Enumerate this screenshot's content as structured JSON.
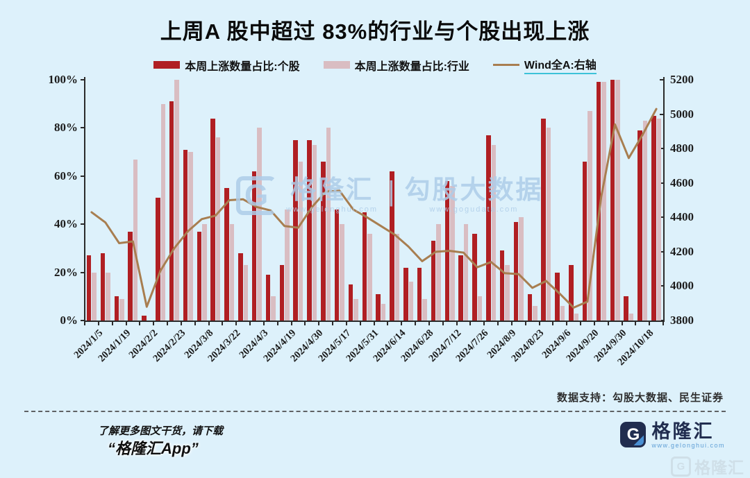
{
  "title": "上周A 股中超过 83%的行业与个股出现上涨",
  "legend": [
    {
      "label": "本周上涨数量占比:个股",
      "color": "#b01f23",
      "type": "bar"
    },
    {
      "label": "本周上涨数量占比:行业",
      "color": "#d9bdc2",
      "type": "bar"
    },
    {
      "label": "Wind全A:右轴",
      "color": "#a87e50",
      "type": "line",
      "underline_color": "#3cc2d8"
    }
  ],
  "watermark": {
    "logo_glyph": "G",
    "brand": "格隆汇",
    "brand_url": "www.gelonghui.com",
    "divider": "|",
    "partner": "勾股大数据",
    "partner_url": "www.gogudata.com"
  },
  "footer": {
    "data_support": "数据支持：勾股大数据、民生证券",
    "promo_line1": "了解更多图文干货，请下载",
    "promo_line2": "“格隆汇App”",
    "logo_glyph": "G",
    "logo_text": "格隆汇",
    "logo_url": "www.gelonghui.com",
    "corner_logo_glyph": "G",
    "corner_logo_text": "格隆汇"
  },
  "chart_data": {
    "type": "bar+line",
    "x_tick_labels": [
      "2024/1/5",
      "2024/1/19",
      "2024/2/2",
      "2024/2/23",
      "2024/3/8",
      "2024/3/22",
      "2024/4/3",
      "2024/4/19",
      "2024/4/30",
      "2024/5/17",
      "2024/5/31",
      "2024/6/14",
      "2024/6/28",
      "2024/7/12",
      "2024/7/26",
      "2024/8/9",
      "2024/8/23",
      "2024/9/6",
      "2024/9/20",
      "2024/9/30",
      "2024/10/18"
    ],
    "label_every_n_pairs": 2,
    "left_axis": {
      "min": 0,
      "max": 100,
      "ticks": [
        "0%",
        "20%",
        "40%",
        "60%",
        "80%",
        "100%"
      ]
    },
    "right_axis": {
      "min": 3800,
      "max": 5200,
      "ticks": [
        "3800",
        "4000",
        "4200",
        "4400",
        "4600",
        "4800",
        "5000",
        "5200"
      ]
    },
    "series": [
      {
        "name": "本周上涨数量占比:个股",
        "type": "bar",
        "axis": "left",
        "color": "#b01f23",
        "values": [
          27,
          28,
          10,
          37,
          2,
          51,
          91,
          71,
          37,
          84,
          55,
          28,
          62,
          19,
          23,
          75,
          75,
          66,
          46,
          15,
          45,
          11,
          62,
          22,
          22,
          33,
          58,
          27,
          36,
          77,
          29,
          41,
          11,
          84,
          20,
          23,
          66,
          99,
          100,
          10,
          79,
          85
        ]
      },
      {
        "name": "本周上涨数量占比:行业",
        "type": "bar",
        "axis": "left",
        "color": "#d9bdc2",
        "values": [
          20,
          20,
          9,
          67,
          0,
          90,
          100,
          70,
          40,
          76,
          40,
          23,
          80,
          10,
          46,
          66,
          73,
          80,
          40,
          9,
          36,
          7,
          36,
          16,
          9,
          40,
          56,
          40,
          10,
          73,
          23,
          43,
          6,
          80,
          6,
          3,
          87,
          99,
          100,
          3,
          83,
          84
        ]
      },
      {
        "name": "Wind全A:右轴",
        "type": "line",
        "axis": "right",
        "color": "#a87e50",
        "values": [
          4430,
          4370,
          4250,
          4260,
          3880,
          4090,
          4220,
          4320,
          4390,
          4410,
          4500,
          4505,
          4460,
          4440,
          4350,
          4340,
          4460,
          4550,
          4555,
          4445,
          4400,
          4350,
          4300,
          4230,
          4145,
          4200,
          4205,
          4195,
          4110,
          4140,
          4075,
          4070,
          3990,
          4030,
          3955,
          3875,
          3910,
          4520,
          4940,
          4745,
          4880,
          5030
        ]
      }
    ]
  }
}
